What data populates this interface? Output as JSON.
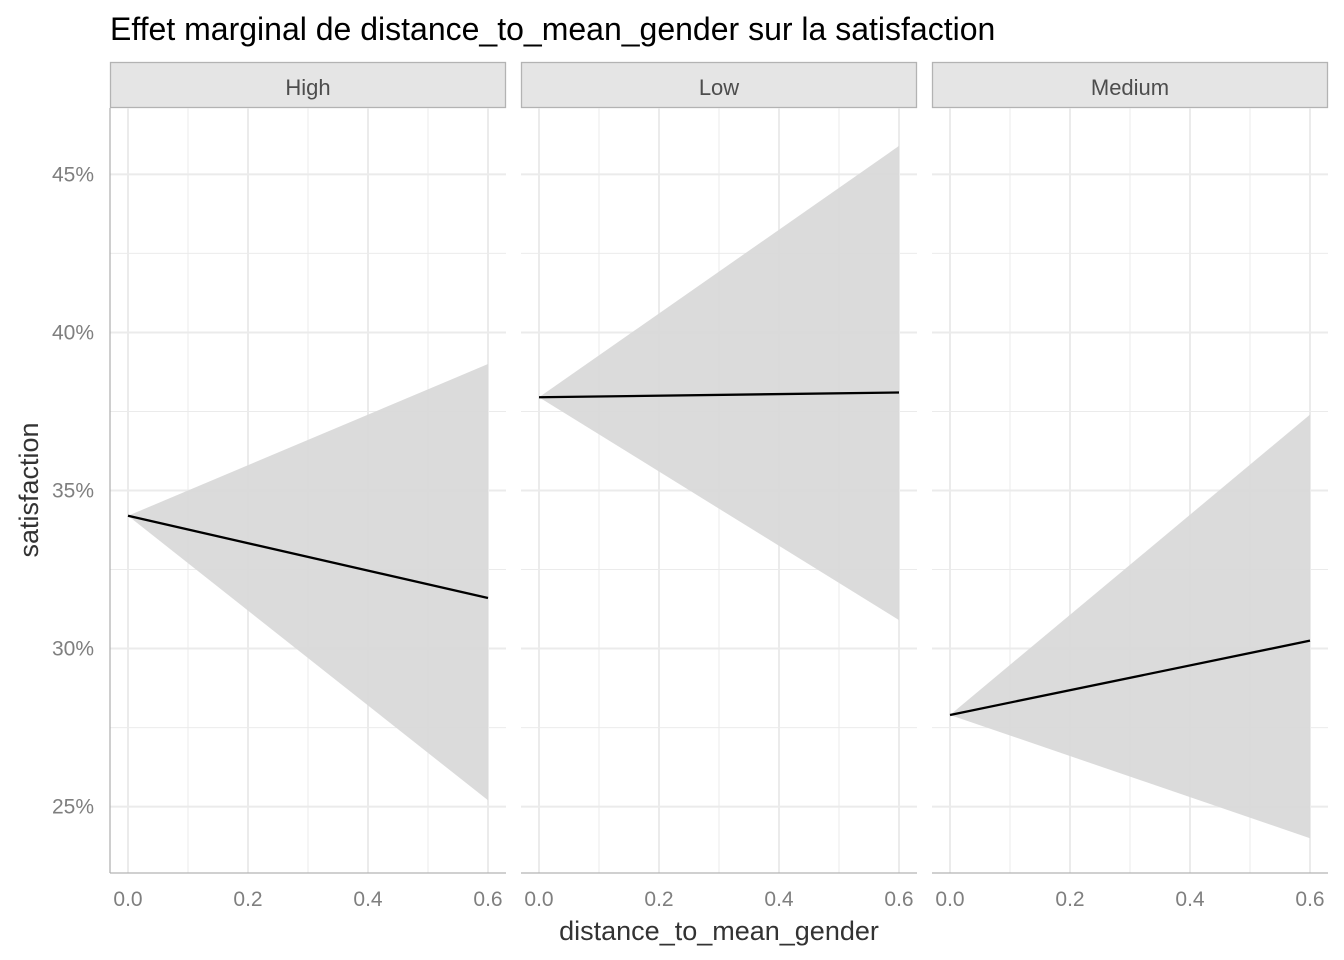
{
  "chart_data": {
    "type": "line",
    "title": "Effet marginal de distance_to_mean_gender sur la satisfaction",
    "xlabel": "distance_to_mean_gender",
    "ylabel": "satisfaction",
    "xlim": [
      -0.03,
      0.63
    ],
    "ylim": [
      22.9,
      47.1
    ],
    "x_ticks": [
      0.0,
      0.2,
      0.4,
      0.6
    ],
    "x_tick_labels": [
      "0.0",
      "0.2",
      "0.4",
      "0.6"
    ],
    "y_ticks": [
      25,
      30,
      35,
      40,
      45
    ],
    "y_tick_labels": [
      "25%",
      "30%",
      "35%",
      "40%",
      "45%"
    ],
    "grid": true,
    "legend": "none",
    "colors": {
      "line": "#000000",
      "ribbon": "#d9d9d9",
      "strip_bg": "#e5e5e5",
      "strip_border": "#b3b3b3",
      "grid": "#ebebeb"
    },
    "panels": [
      {
        "name": "High",
        "x": [
          0.0,
          0.6
        ],
        "y": [
          34.2,
          31.6
        ],
        "lower": [
          34.2,
          25.2
        ],
        "upper": [
          34.2,
          39.0
        ]
      },
      {
        "name": "Low",
        "x": [
          0.0,
          0.6
        ],
        "y": [
          37.95,
          38.1
        ],
        "lower": [
          37.95,
          30.9
        ],
        "upper": [
          37.95,
          45.9
        ]
      },
      {
        "name": "Medium",
        "x": [
          0.0,
          0.6
        ],
        "y": [
          27.9,
          30.25
        ],
        "lower": [
          27.9,
          24.0
        ],
        "upper": [
          27.9,
          37.4
        ]
      }
    ]
  }
}
